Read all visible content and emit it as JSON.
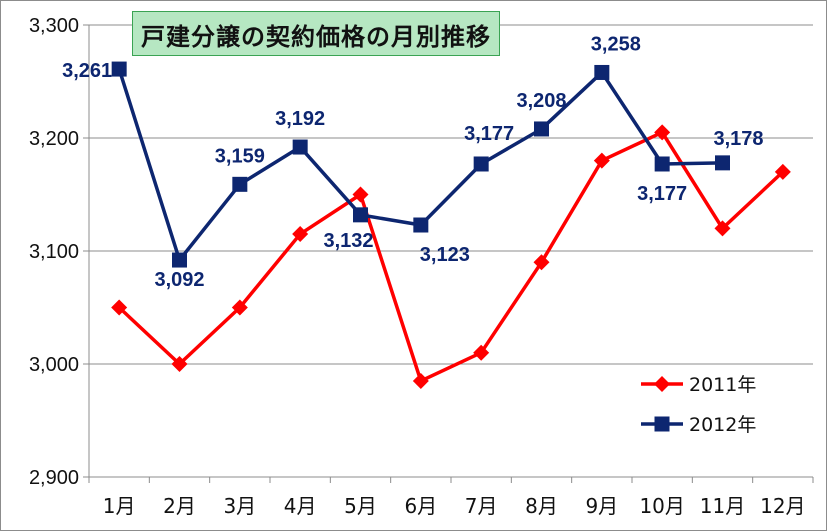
{
  "chart_data": {
    "type": "line",
    "title": "戸建分譲の契約価格の月別推移",
    "categories": [
      "1月",
      "2月",
      "3月",
      "4月",
      "5月",
      "6月",
      "7月",
      "8月",
      "9月",
      "10月",
      "11月",
      "12月"
    ],
    "ylim": [
      2900,
      3300
    ],
    "yticks": [
      2900,
      3000,
      3100,
      3200,
      3300
    ],
    "ytick_labels": [
      "2,900",
      "3,000",
      "3,100",
      "3,200",
      "3,300"
    ],
    "grid": "horizontal",
    "legend_position": "bottom-right",
    "series": [
      {
        "name": "2011年",
        "color": "#ff0000",
        "marker": "diamond",
        "values": [
          3050,
          3000,
          3050,
          3115,
          3150,
          2985,
          3010,
          3090,
          3180,
          3205,
          3120,
          3170
        ]
      },
      {
        "name": "2012年",
        "color": "#0d2670",
        "marker": "square",
        "values": [
          3261,
          3092,
          3159,
          3192,
          3132,
          3123,
          3177,
          3208,
          3258,
          3177,
          3178,
          null
        ],
        "data_labels": [
          "3,261",
          "3,092",
          "3,159",
          "3,192",
          "3,132",
          "3,123",
          "3,177",
          "3,208",
          "3,258",
          "3,177",
          "3,178",
          null
        ]
      }
    ]
  }
}
